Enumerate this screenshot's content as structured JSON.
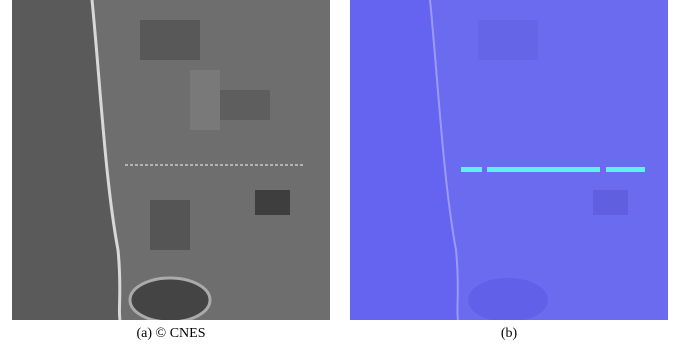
{
  "figure": {
    "panels": [
      {
        "caption": "(a) © CNES"
      },
      {
        "caption": "(b)"
      }
    ]
  }
}
